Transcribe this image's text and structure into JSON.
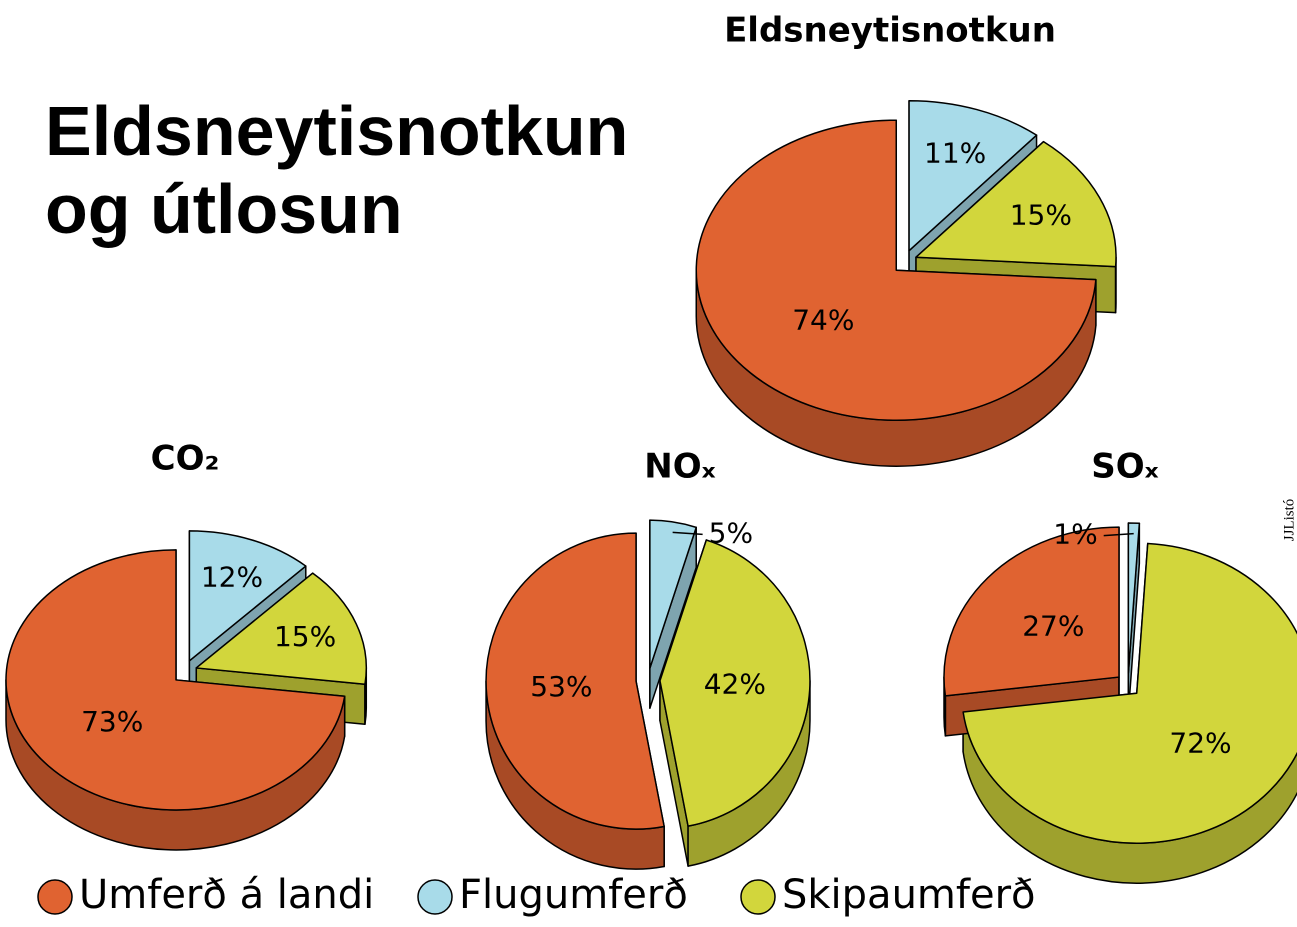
{
  "title": "Eldsneytisnotkun og útlosun",
  "credit": "JJListó",
  "legend": [
    {
      "name": "Umferð á landi",
      "color": "#e06331"
    },
    {
      "name": "Flugumferð",
      "color": "#a8dbe9"
    },
    {
      "name": "Skipaumferð",
      "color": "#d2d63c"
    }
  ],
  "chart_data": [
    {
      "type": "pie",
      "title": "Eldsneytisnotkun",
      "values": [
        74,
        11,
        15
      ],
      "value_labels": [
        "74%",
        "11%",
        "15%"
      ]
    },
    {
      "type": "pie",
      "title": "CO₂",
      "values": [
        73,
        12,
        15
      ],
      "value_labels": [
        "73%",
        "12%",
        "15%"
      ]
    },
    {
      "type": "pie",
      "title": "NOₓ",
      "values": [
        53,
        5,
        42
      ],
      "value_labels": [
        "53%",
        "5%",
        "42%"
      ]
    },
    {
      "type": "pie",
      "title": "SOₓ",
      "values": [
        27,
        1,
        72
      ],
      "value_labels": [
        "27%",
        "1%",
        "72%"
      ]
    }
  ]
}
